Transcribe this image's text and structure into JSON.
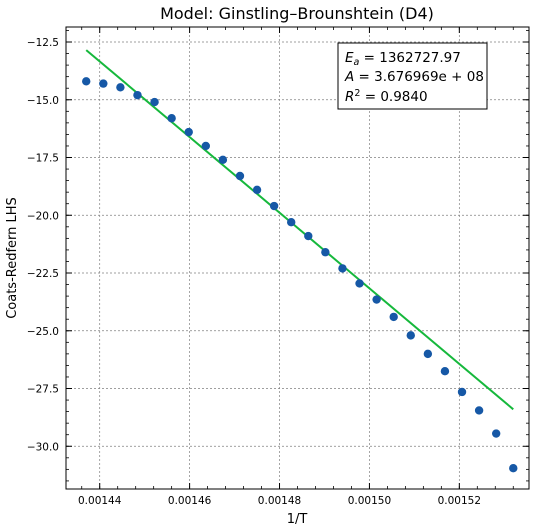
{
  "chart_data": {
    "type": "scatter",
    "title": "Model: Ginstling–Brounshtein (D4)",
    "xlabel": "1/T",
    "ylabel": "Coats-Redfern LHS",
    "xlim": [
      0.0014325,
      0.0015355
    ],
    "ylim": [
      -31.85,
      -11.85
    ],
    "x_ticks": [
      0.00144,
      0.00146,
      0.00148,
      0.0015,
      0.00152
    ],
    "x_tick_labels": [
      "0.00144",
      "0.00146",
      "0.00148",
      "0.00150",
      "0.00152"
    ],
    "y_ticks": [
      -12.5,
      -15.0,
      -17.5,
      -20.0,
      -22.5,
      -25.0,
      -27.5,
      -30.0
    ],
    "y_tick_labels": [
      "−12.5",
      "−15.0",
      "−17.5",
      "−20.0",
      "−22.5",
      "−25.0",
      "−27.5",
      "−30.0"
    ],
    "grid": true,
    "annotation_box": {
      "lines": [
        {
          "base": "E",
          "sub": "a",
          "rest": " = 1362727.97"
        },
        {
          "base": "A",
          "rest": " = 3.676969e + 08"
        },
        {
          "base": "R",
          "sup": "2",
          "rest": " = 0.9840"
        }
      ],
      "placement": "top-right"
    },
    "series": [
      {
        "type": "scatter",
        "color": "#1658a6",
        "x": [
          0.001437,
          0.0014408,
          0.0014446,
          0.0014484,
          0.0014522,
          0.001456,
          0.0014598,
          0.0014636,
          0.0014674,
          0.0014712,
          0.001475,
          0.0014788,
          0.0014826,
          0.0014864,
          0.0014902,
          0.001494,
          0.0014978,
          0.0015016,
          0.0015054,
          0.0015092,
          0.001513,
          0.0015168,
          0.0015206,
          0.0015244,
          0.0015282,
          0.001532
        ],
        "y": [
          -14.2,
          -14.3,
          -14.46,
          -14.8,
          -15.1,
          -15.8,
          -16.4,
          -17.0,
          -17.6,
          -18.3,
          -18.9,
          -19.6,
          -20.3,
          -20.9,
          -21.6,
          -22.3,
          -22.95,
          -23.65,
          -24.4,
          -25.2,
          -26.0,
          -26.75,
          -27.65,
          -28.45,
          -29.45,
          -30.95
        ]
      },
      {
        "type": "line",
        "color": "#16b83c",
        "x": [
          0.001437,
          0.001532
        ],
        "y": [
          -12.85,
          -28.4
        ]
      }
    ]
  }
}
